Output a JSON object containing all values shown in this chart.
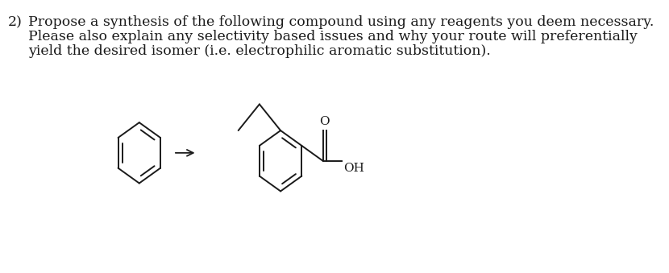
{
  "title_number": "2)",
  "line1": "Propose a synthesis of the following compound using any reagents you deem necessary.",
  "line2": "Please also explain any selectivity based issues and why your route will preferentially",
  "line3": "yield the desired isomer (i.e. electrophilic aromatic substitution).",
  "bg_color": "#ffffff",
  "text_color": "#1a1a1a",
  "line_color": "#1a1a1a",
  "font_size_text": 12.5,
  "fig_width": 8.3,
  "fig_height": 3.39,
  "dpi": 100
}
